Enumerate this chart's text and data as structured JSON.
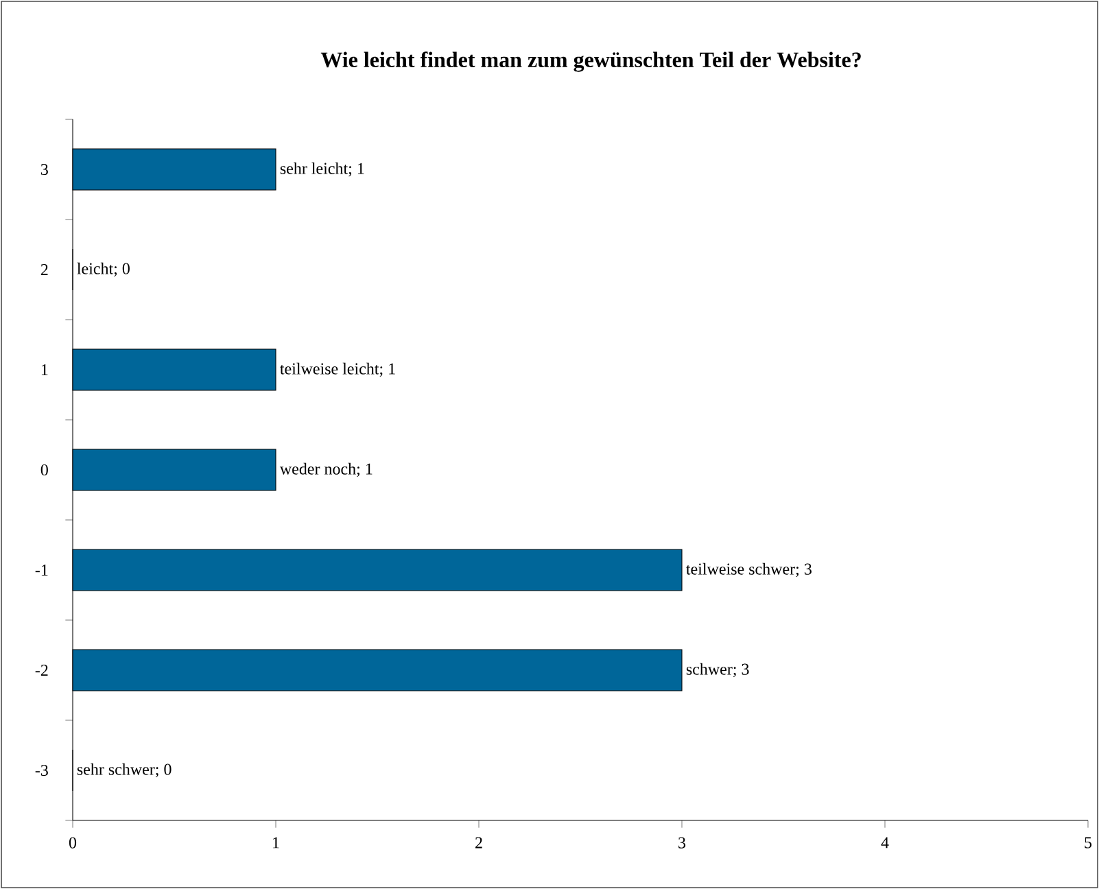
{
  "chart_data": {
    "type": "bar",
    "orientation": "horizontal",
    "title": "Wie leicht findet man zum gewünschten Teil der Website?",
    "categories": [
      "3",
      "2",
      "1",
      "0",
      "-1",
      "-2",
      "-3"
    ],
    "values": [
      1,
      0,
      1,
      1,
      3,
      3,
      0
    ],
    "value_labels": [
      "sehr leicht; 1",
      "leicht; 0",
      "teilweise leicht; 1",
      "weder noch; 1",
      "teilweise schwer; 3",
      "schwer; 3",
      "sehr schwer; 0"
    ],
    "color": "#006699",
    "xlim": [
      0,
      5
    ],
    "xticks": [
      0,
      1,
      2,
      3,
      4,
      5
    ]
  }
}
